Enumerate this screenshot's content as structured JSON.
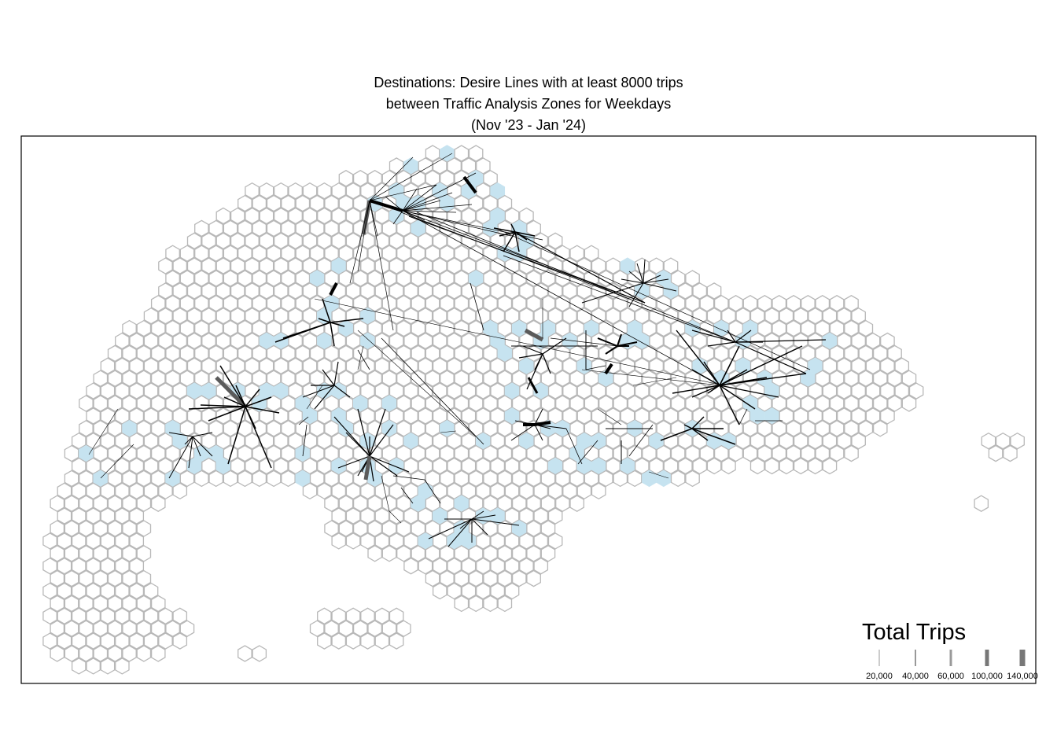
{
  "title": {
    "line1": "Destinations: Desire Lines with at least 8000 trips",
    "line2": "between Traffic Analysis Zones for Weekdays",
    "line3": "(Nov '23 - Jan '24)"
  },
  "legend": {
    "title": "Total Trips",
    "items": [
      {
        "label": "20,000",
        "value": 20000
      },
      {
        "label": "40,000",
        "value": 40000
      },
      {
        "label": "60,000",
        "value": 60000
      },
      {
        "label": "100,000",
        "value": 100000
      },
      {
        "label": "140,000",
        "value": 140000
      }
    ]
  },
  "colors": {
    "hex_outline": "#b8b8b8",
    "active_zone": "#c6e3f0",
    "desire_line": "#000000",
    "frame": "#000000"
  }
}
